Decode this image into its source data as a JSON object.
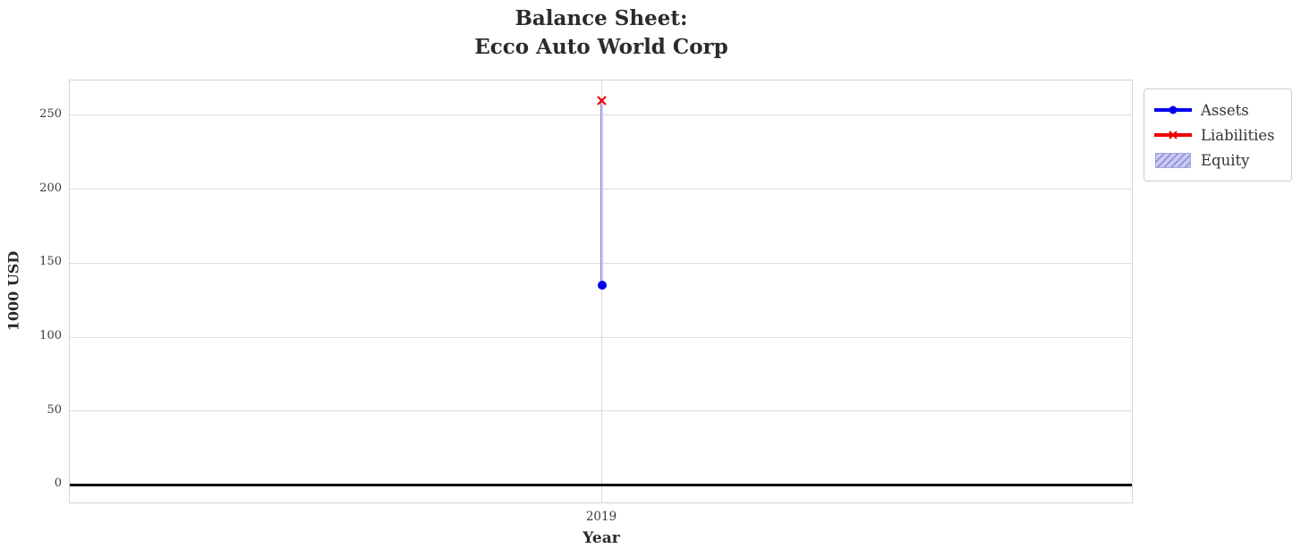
{
  "figure": {
    "title_line1": "Balance Sheet:",
    "title_line2": "Ecco Auto World Corp",
    "xlabel": "Year",
    "ylabel": "1000 USD"
  },
  "legend": {
    "items": [
      {
        "label": "Assets",
        "swatch": "blue-line-circle-marker",
        "color": "#0000ee"
      },
      {
        "label": "Liabilities",
        "swatch": "red-line-x-marker",
        "color": "#ee0000"
      },
      {
        "label": "Equity",
        "swatch": "hatched-patch",
        "color": "#c9c9f0"
      }
    ]
  },
  "chart_data": {
    "type": "line",
    "title": "Balance Sheet:\nEcco Auto World Corp",
    "xlabel": "Year",
    "ylabel": "1000 USD",
    "x": [
      2019
    ],
    "xtick_labels": [
      "2019"
    ],
    "series": [
      {
        "name": "Assets",
        "plot": "line",
        "marker": "circle",
        "color": "#0000ee",
        "values": [
          135
        ]
      },
      {
        "name": "Liabilities",
        "plot": "line",
        "marker": "x",
        "color": "#ee0000",
        "values": [
          260
        ]
      },
      {
        "name": "Equity",
        "plot": "bar",
        "hatch": "///",
        "color": "#c9c9f0",
        "values": [
          -125
        ]
      }
    ],
    "equity_bar_span": [
      135,
      260
    ],
    "yticks": [
      0,
      50,
      100,
      150,
      200,
      250
    ],
    "ylim": [
      -13,
      273.5
    ],
    "grid": true,
    "zero_line": true,
    "legend_position": "upper-right-outside",
    "colors": {
      "assets": "#0000ee",
      "liabilities": "#ee0000",
      "equity_fill": "#c9c9f0",
      "equity_hatch": "#8585d6"
    }
  }
}
